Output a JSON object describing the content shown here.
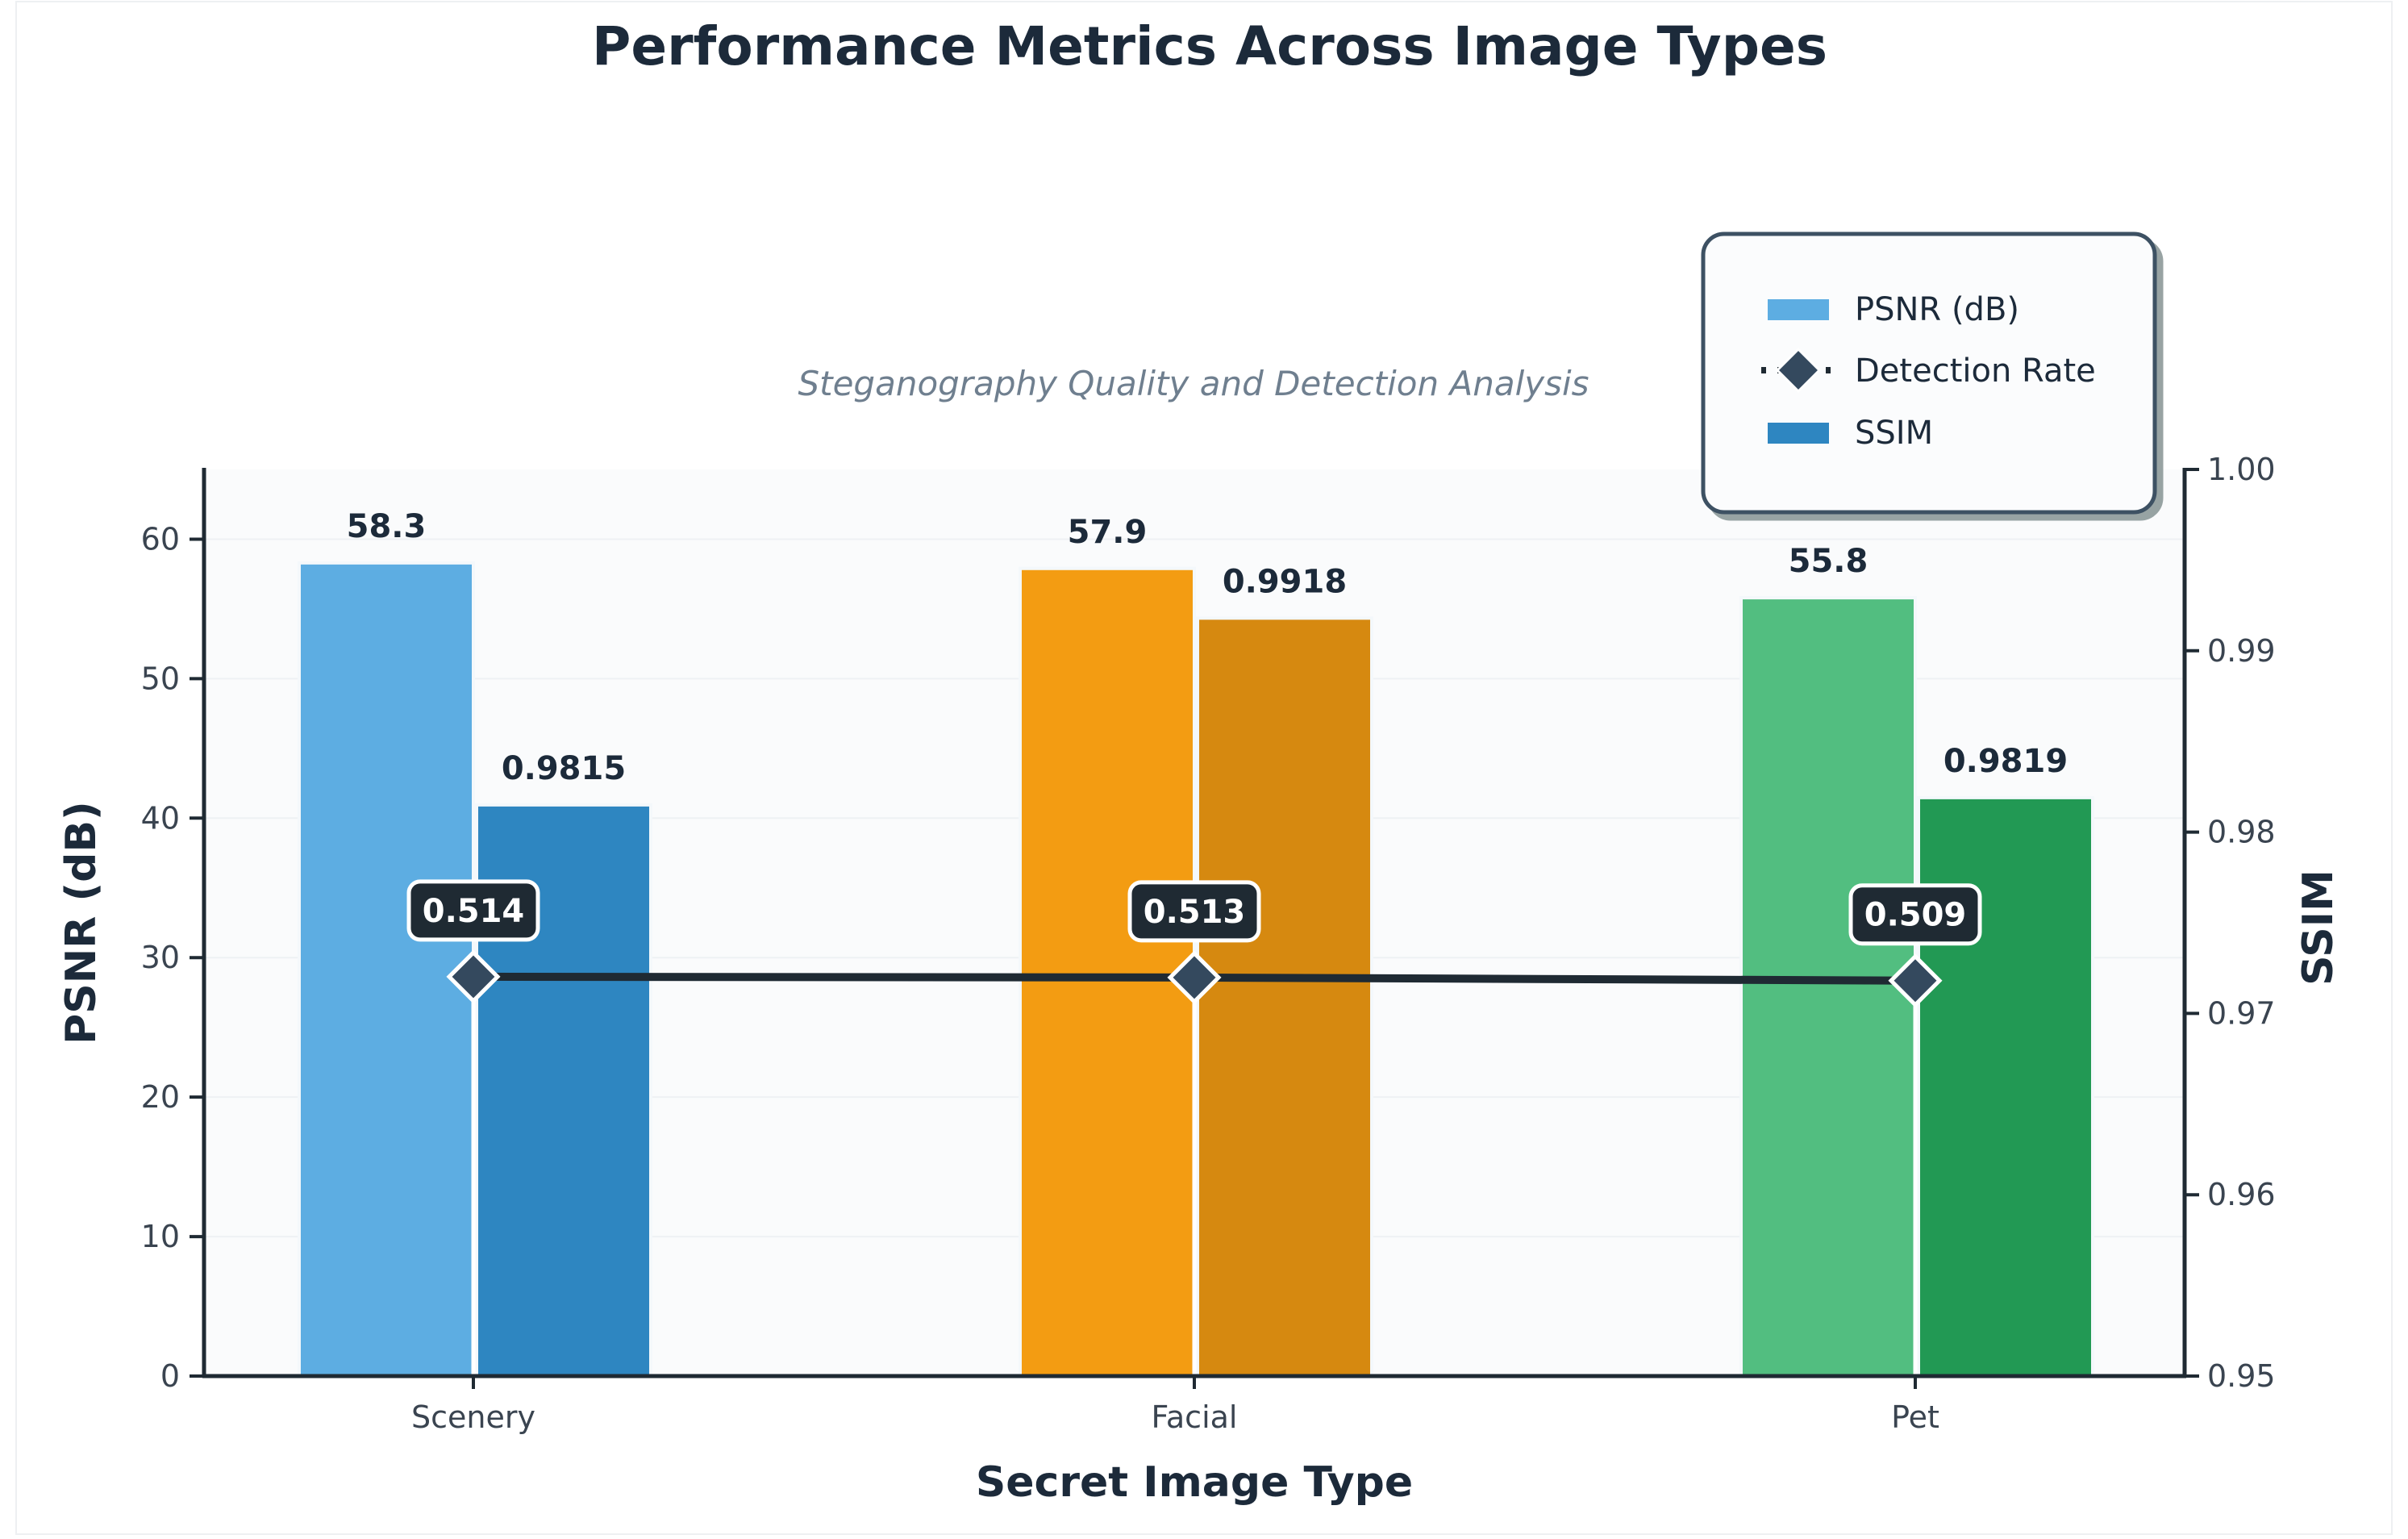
{
  "chart_data": {
    "type": "bar",
    "title": "Performance Metrics Across Image Types",
    "subtitle": "Steganography Quality and Detection Analysis",
    "xlabel": "Secret Image Type",
    "ylabel_left": "PSNR (dB)",
    "ylabel_right": "SSIM",
    "categories": [
      "Scenery",
      "Facial",
      "Pet"
    ],
    "ylim_left": [
      0,
      65
    ],
    "yticks_left": [
      "0",
      "10",
      "20",
      "30",
      "40",
      "50",
      "60"
    ],
    "ylim_right": [
      0.95,
      1.0
    ],
    "yticks_right": [
      "0.95",
      "0.96",
      "0.97",
      "0.98",
      "0.99",
      "1.00"
    ],
    "series": [
      {
        "name": "PSNR (dB)",
        "axis": "left",
        "type": "bar",
        "values": [
          58.3,
          57.9,
          55.8
        ],
        "labels": [
          "58.3",
          "57.9",
          "55.8"
        ]
      },
      {
        "name": "SSIM",
        "axis": "right",
        "type": "bar",
        "values": [
          0.9815,
          0.9918,
          0.9819
        ],
        "labels": [
          "0.9815",
          "0.9918",
          "0.9819"
        ]
      },
      {
        "name": "Detection Rate",
        "axis": "left-scaled",
        "type": "line",
        "values": [
          0.514,
          0.513,
          0.509
        ],
        "labels": [
          "0.514",
          "0.513",
          "0.509"
        ],
        "scale_factor": 55.7
      }
    ],
    "colors": {
      "psnr": [
        "#5dade2",
        "#f39c12",
        "#52be80"
      ],
      "ssim": [
        "#2e86c1",
        "#d68910",
        "#229954"
      ],
      "line": "#1f2a33",
      "marker": "#34495e",
      "legend_psnr": "#5dade2",
      "legend_ssim": "#2e86c1"
    },
    "legend": {
      "placement": "top-right",
      "items": [
        "PSNR (dB)",
        "Detection Rate",
        "SSIM"
      ]
    },
    "grid": true
  }
}
